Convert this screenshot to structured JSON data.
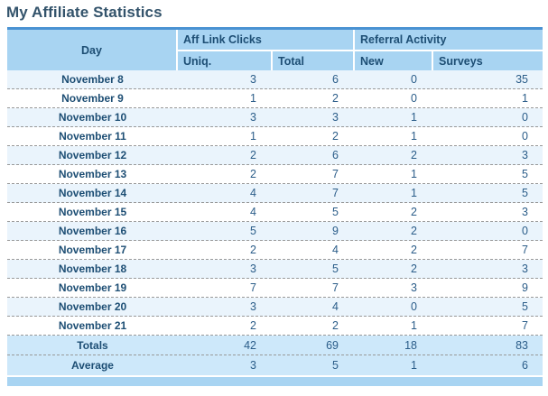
{
  "page": {
    "title": "My Affiliate Statistics"
  },
  "table": {
    "day_header": "Day",
    "groups": [
      "Aff Link Clicks",
      "Referral Activity"
    ],
    "sub_headers": [
      "Uniq.",
      "Total",
      "New",
      "Surveys"
    ],
    "rows": [
      {
        "day": "November 8",
        "uniq": 3,
        "total": 6,
        "new": 0,
        "surveys": 35
      },
      {
        "day": "November 9",
        "uniq": 1,
        "total": 2,
        "new": 0,
        "surveys": 1
      },
      {
        "day": "November 10",
        "uniq": 3,
        "total": 3,
        "new": 1,
        "surveys": 0
      },
      {
        "day": "November 11",
        "uniq": 1,
        "total": 2,
        "new": 1,
        "surveys": 0
      },
      {
        "day": "November 12",
        "uniq": 2,
        "total": 6,
        "new": 2,
        "surveys": 3
      },
      {
        "day": "November 13",
        "uniq": 2,
        "total": 7,
        "new": 1,
        "surveys": 5
      },
      {
        "day": "November 14",
        "uniq": 4,
        "total": 7,
        "new": 1,
        "surveys": 5
      },
      {
        "day": "November 15",
        "uniq": 4,
        "total": 5,
        "new": 2,
        "surveys": 3
      },
      {
        "day": "November 16",
        "uniq": 5,
        "total": 9,
        "new": 2,
        "surveys": 0
      },
      {
        "day": "November 17",
        "uniq": 2,
        "total": 4,
        "new": 2,
        "surveys": 7
      },
      {
        "day": "November 18",
        "uniq": 3,
        "total": 5,
        "new": 2,
        "surveys": 3
      },
      {
        "day": "November 19",
        "uniq": 7,
        "total": 7,
        "new": 3,
        "surveys": 9
      },
      {
        "day": "November 20",
        "uniq": 3,
        "total": 4,
        "new": 0,
        "surveys": 5
      },
      {
        "day": "November 21",
        "uniq": 2,
        "total": 2,
        "new": 1,
        "surveys": 7
      }
    ],
    "totals": {
      "label": "Totals",
      "uniq": 42,
      "total": 69,
      "new": 18,
      "surveys": 83
    },
    "average": {
      "label": "Average",
      "uniq": 3,
      "total": 5,
      "new": 1,
      "surveys": 6
    }
  },
  "colors": {
    "accent_top_border": "#4a92d2",
    "header_bg": "#a8d4f2",
    "summary_row_bg": "#cde8fa",
    "alt_row_bg": "#eaf4fc",
    "footer_bar_bg": "#a8d4f2",
    "title_text": "#33536b",
    "header_text": "#1d4e74",
    "number_text": "#2b5d89",
    "dash_separator": "#999999"
  }
}
